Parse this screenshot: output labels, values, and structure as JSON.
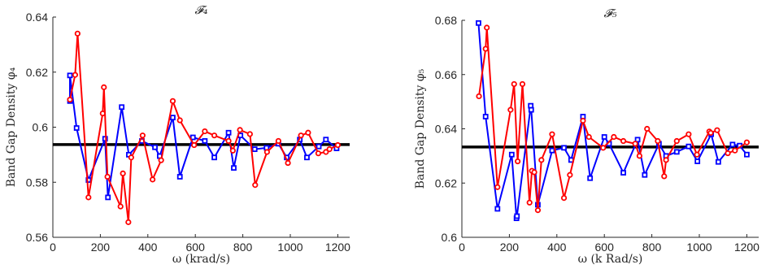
{
  "chart_data": [
    {
      "type": "line",
      "title": "𝓕₄",
      "xlabel": "ω (krad/s)",
      "ylabel": "Band Gap Density φ₄",
      "xlim": [
        0,
        1250
      ],
      "ylim": [
        0.56,
        0.64
      ],
      "xticks": [
        0,
        200,
        400,
        600,
        800,
        1000,
        1200
      ],
      "xtick_labels": [
        "0",
        "200",
        "400",
        "600",
        "800",
        "1000",
        "1200"
      ],
      "yticks": [
        0.56,
        0.58,
        0.6,
        0.62,
        0.64
      ],
      "ytick_labels": [
        "0.56",
        "0.58",
        "0.6",
        "0.62",
        "0.64"
      ],
      "grid": false,
      "reference_line": {
        "y": 0.5937,
        "color": "#000000"
      },
      "series": [
        {
          "color": "#0000ff",
          "marker": "square",
          "points": [
            [
              72,
              0.6095
            ],
            [
              72,
              0.6188
            ],
            [
              100,
              0.5997
            ],
            [
              150,
              0.5808
            ],
            [
              220,
              0.5958
            ],
            [
              232,
              0.5745
            ],
            [
              290,
              0.6073
            ],
            [
              320,
              0.59
            ],
            [
              375,
              0.595
            ],
            [
              430,
              0.5927
            ],
            [
              450,
              0.5895
            ],
            [
              505,
              0.6035
            ],
            [
              535,
              0.582
            ],
            [
              590,
              0.5963
            ],
            [
              640,
              0.595
            ],
            [
              680,
              0.589
            ],
            [
              740,
              0.598
            ],
            [
              762,
              0.5852
            ],
            [
              790,
              0.597
            ],
            [
              850,
              0.592
            ],
            [
              900,
              0.5925
            ],
            [
              950,
              0.594
            ],
            [
              985,
              0.589
            ],
            [
              1040,
              0.5955
            ],
            [
              1070,
              0.589
            ],
            [
              1120,
              0.593
            ],
            [
              1150,
              0.5955
            ],
            [
              1195,
              0.5923
            ]
          ]
        },
        {
          "color": "#ff0000",
          "marker": "circle",
          "points": [
            [
              72,
              0.61
            ],
            [
              94,
              0.619
            ],
            [
              104,
              0.634
            ],
            [
              150,
              0.5745
            ],
            [
              210,
              0.605
            ],
            [
              215,
              0.6145
            ],
            [
              230,
              0.582
            ],
            [
              285,
              0.5712
            ],
            [
              295,
              0.5832
            ],
            [
              318,
              0.5655
            ],
            [
              330,
              0.589
            ],
            [
              378,
              0.597
            ],
            [
              420,
              0.581
            ],
            [
              456,
              0.588
            ],
            [
              505,
              0.6095
            ],
            [
              535,
              0.6025
            ],
            [
              595,
              0.5935
            ],
            [
              640,
              0.5985
            ],
            [
              680,
              0.597
            ],
            [
              740,
              0.595
            ],
            [
              758,
              0.5915
            ],
            [
              788,
              0.599
            ],
            [
              830,
              0.5975
            ],
            [
              852,
              0.579
            ],
            [
              902,
              0.591
            ],
            [
              950,
              0.595
            ],
            [
              990,
              0.587
            ],
            [
              1045,
              0.597
            ],
            [
              1075,
              0.598
            ],
            [
              1118,
              0.5905
            ],
            [
              1150,
              0.591
            ],
            [
              1165,
              0.592
            ],
            [
              1200,
              0.5935
            ]
          ]
        }
      ]
    },
    {
      "type": "line",
      "title": "𝓕₅",
      "xlabel": "ω (k Rad/s)",
      "ylabel": "Band Gap Density φ₅",
      "xlim": [
        0,
        1250
      ],
      "ylim": [
        0.6,
        0.68
      ],
      "xticks": [
        0,
        200,
        400,
        600,
        800,
        1000,
        1200
      ],
      "xtick_labels": [
        "0",
        "200",
        "400",
        "600",
        "800",
        "1000",
        "1200"
      ],
      "yticks": [
        0.6,
        0.62,
        0.64,
        0.66,
        0.68
      ],
      "ytick_labels": [
        "0.6",
        "0.62",
        "0.64",
        "0.66",
        "0.68"
      ],
      "grid": false,
      "reference_line": {
        "y": 0.6333,
        "color": "#000000"
      },
      "series": [
        {
          "color": "#0000ff",
          "marker": "square",
          "points": [
            [
              70,
              0.679
            ],
            [
              100,
              0.6445
            ],
            [
              150,
              0.6105
            ],
            [
              210,
              0.6305
            ],
            [
              230,
              0.607
            ],
            [
              232,
              0.6078
            ],
            [
              290,
              0.6485
            ],
            [
              292,
              0.647
            ],
            [
              320,
              0.612
            ],
            [
              380,
              0.632
            ],
            [
              430,
              0.633
            ],
            [
              460,
              0.6285
            ],
            [
              510,
              0.6445
            ],
            [
              540,
              0.6218
            ],
            [
              600,
              0.637
            ],
            [
              620,
              0.6345
            ],
            [
              680,
              0.6238
            ],
            [
              740,
              0.636
            ],
            [
              770,
              0.623
            ],
            [
              830,
              0.6345
            ],
            [
              860,
              0.63
            ],
            [
              905,
              0.6315
            ],
            [
              955,
              0.6335
            ],
            [
              992,
              0.628
            ],
            [
              1050,
              0.638
            ],
            [
              1080,
              0.6278
            ],
            [
              1140,
              0.6342
            ],
            [
              1170,
              0.6338
            ],
            [
              1200,
              0.6305
            ]
          ]
        },
        {
          "color": "#ff0000",
          "marker": "circle",
          "points": [
            [
              72,
              0.652
            ],
            [
              100,
              0.6695
            ],
            [
              105,
              0.6773
            ],
            [
              150,
              0.6185
            ],
            [
              205,
              0.647
            ],
            [
              220,
              0.6565
            ],
            [
              235,
              0.628
            ],
            [
              255,
              0.6565
            ],
            [
              285,
              0.6128
            ],
            [
              295,
              0.6245
            ],
            [
              305,
              0.624
            ],
            [
              320,
              0.61
            ],
            [
              335,
              0.6285
            ],
            [
              380,
              0.638
            ],
            [
              430,
              0.6145
            ],
            [
              455,
              0.623
            ],
            [
              510,
              0.643
            ],
            [
              535,
              0.637
            ],
            [
              595,
              0.633
            ],
            [
              640,
              0.637
            ],
            [
              680,
              0.6355
            ],
            [
              730,
              0.6345
            ],
            [
              748,
              0.63
            ],
            [
              780,
              0.64
            ],
            [
              825,
              0.6355
            ],
            [
              852,
              0.6225
            ],
            [
              860,
              0.6285
            ],
            [
              905,
              0.6355
            ],
            [
              955,
              0.638
            ],
            [
              990,
              0.6305
            ],
            [
              1042,
              0.639
            ],
            [
              1048,
              0.6385
            ],
            [
              1075,
              0.6395
            ],
            [
              1120,
              0.631
            ],
            [
              1150,
              0.632
            ],
            [
              1200,
              0.635
            ]
          ]
        }
      ]
    }
  ]
}
